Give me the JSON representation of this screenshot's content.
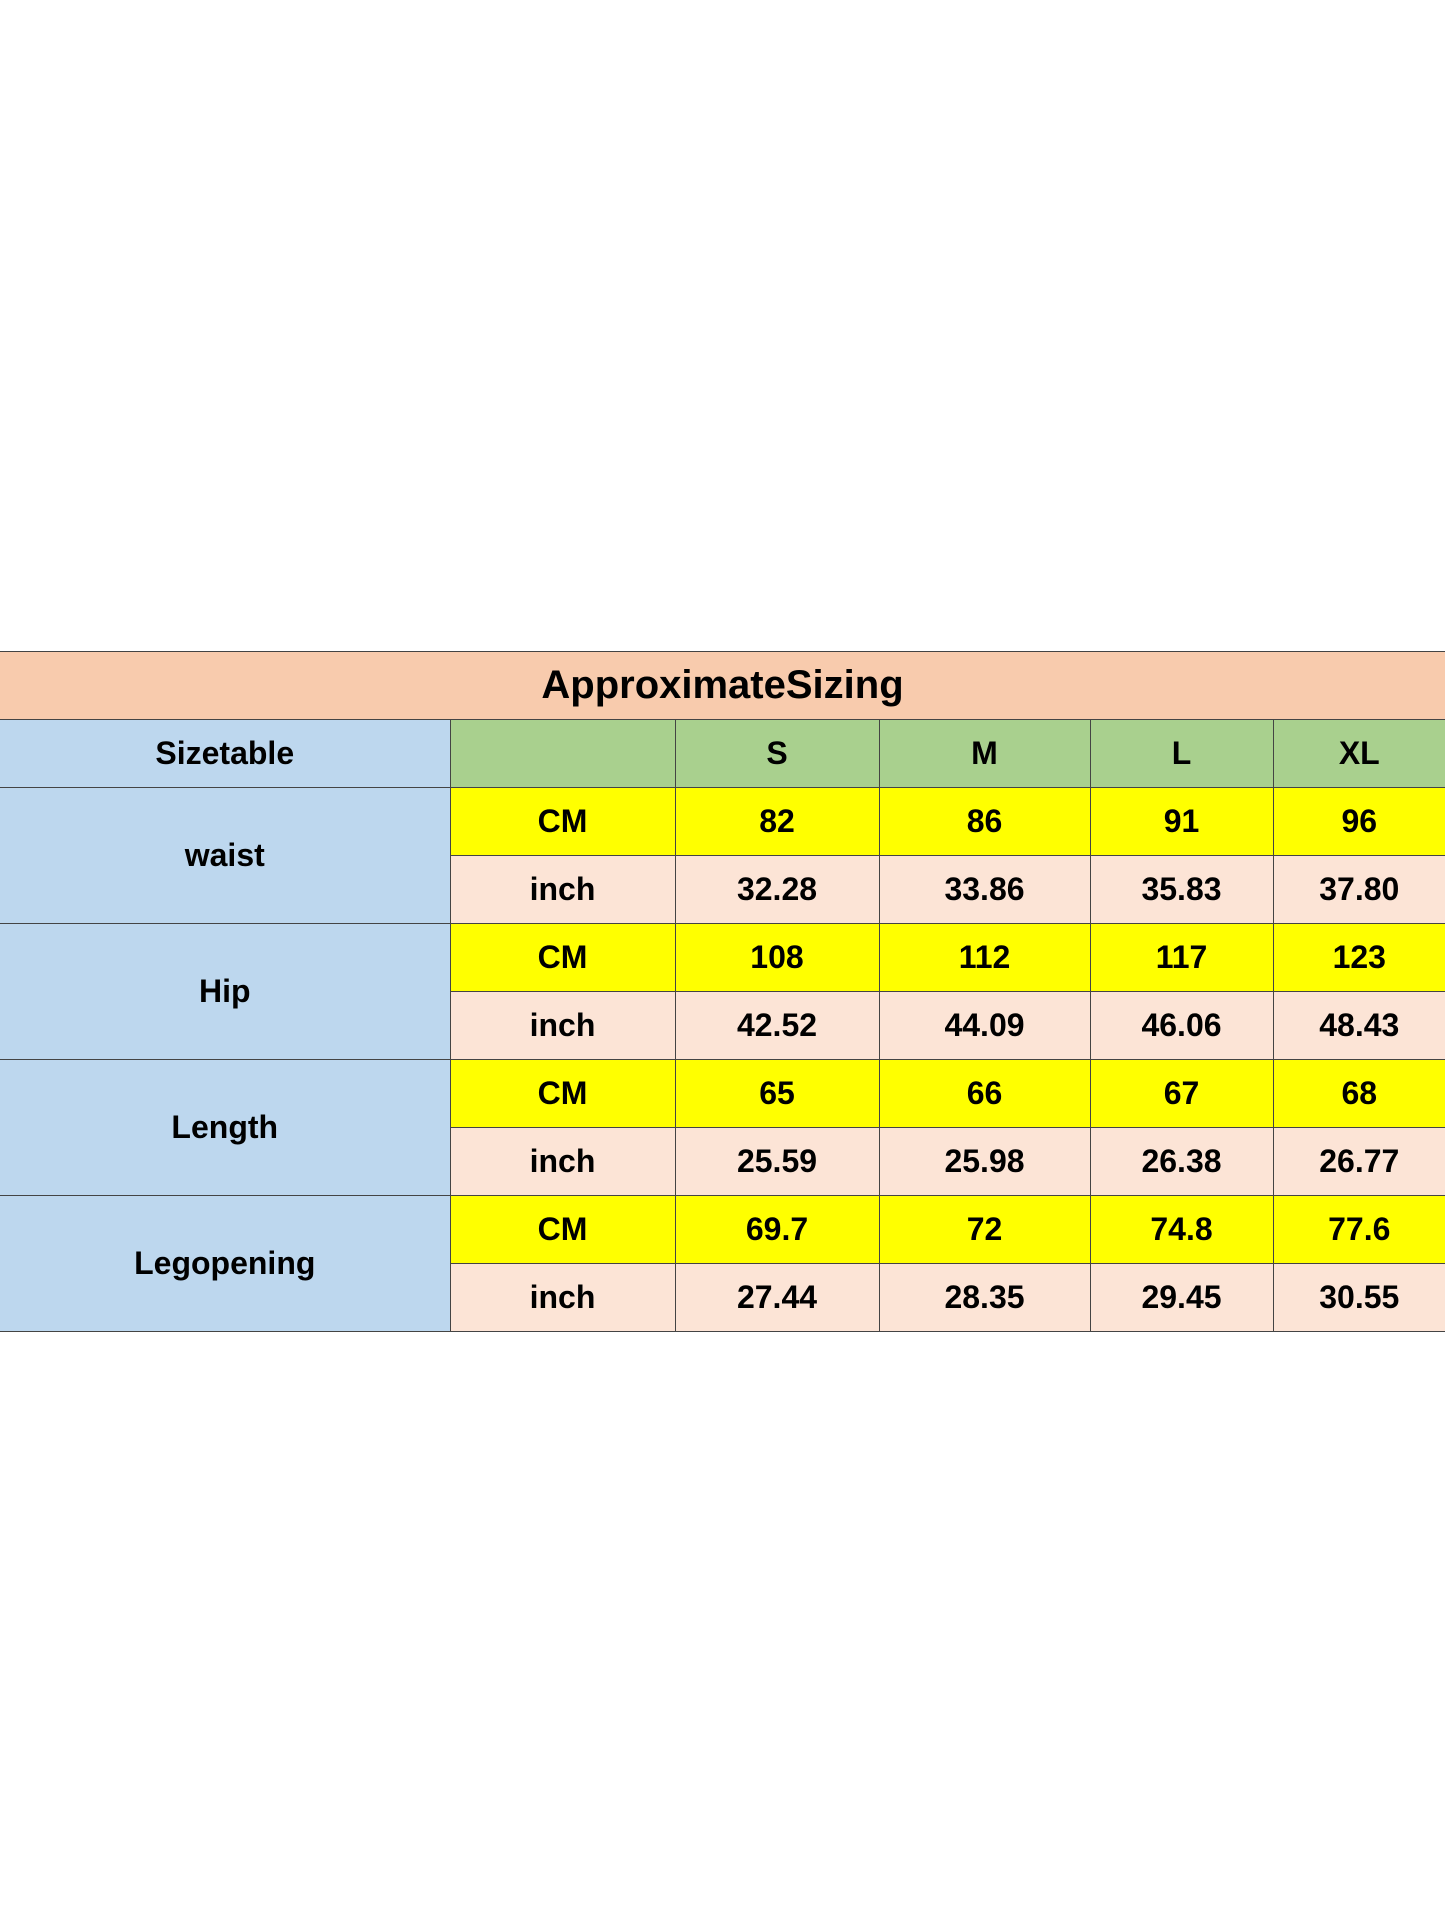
{
  "title": "ApproximateSizing",
  "header": {
    "label": "Sizetable",
    "sizes": [
      "S",
      "M",
      "L",
      "XL"
    ]
  },
  "units": {
    "cm": "CM",
    "inch": "inch"
  },
  "rows": [
    {
      "name": "waist",
      "cm": [
        "82",
        "86",
        "91",
        "96"
      ],
      "inch": [
        "32.28",
        "33.86",
        "35.83",
        "37.80"
      ]
    },
    {
      "name": "Hip",
      "cm": [
        "108",
        "112",
        "117",
        "123"
      ],
      "inch": [
        "42.52",
        "44.09",
        "46.06",
        "48.43"
      ]
    },
    {
      "name": "Length",
      "cm": [
        "65",
        "66",
        "67",
        "68"
      ],
      "inch": [
        "25.59",
        "25.98",
        "26.38",
        "26.77"
      ]
    },
    {
      "name": "Legopening",
      "cm": [
        "69.7",
        "72",
        "74.8",
        "77.6"
      ],
      "inch": [
        "27.44",
        "28.35",
        "29.45",
        "30.55"
      ]
    }
  ]
}
